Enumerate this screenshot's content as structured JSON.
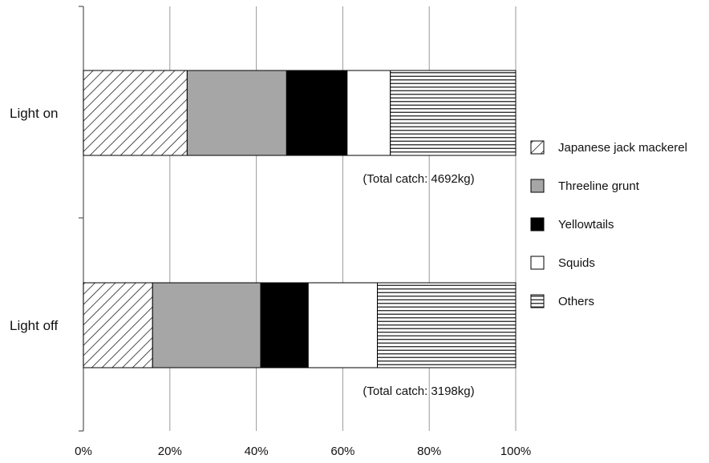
{
  "chart_data": {
    "type": "bar",
    "orientation": "horizontal",
    "stacked": true,
    "percent": true,
    "categories": [
      "Light on",
      "Light off"
    ],
    "series": [
      {
        "name": "Japanese jack mackerel",
        "values": [
          24,
          16
        ],
        "pattern": "diagonal-hatch"
      },
      {
        "name": "Threeline grunt",
        "values": [
          23,
          25
        ],
        "pattern": "solid",
        "color": "#a6a6a6"
      },
      {
        "name": "Yellowtails",
        "values": [
          14,
          11
        ],
        "pattern": "solid",
        "color": "#000000"
      },
      {
        "name": "Squids",
        "values": [
          10,
          16
        ],
        "pattern": "solid",
        "color": "#ffffff"
      },
      {
        "name": "Others",
        "values": [
          29,
          32
        ],
        "pattern": "horizontal-lines"
      }
    ],
    "xlim": [
      0,
      100
    ],
    "x_ticks": [
      "0%",
      "20%",
      "40%",
      "60%",
      "80%",
      "100%"
    ],
    "annotations": [
      "(Total catch: 4692kg)",
      "(Total catch: 3198kg)"
    ],
    "grid": "vertical",
    "legend": "right"
  }
}
